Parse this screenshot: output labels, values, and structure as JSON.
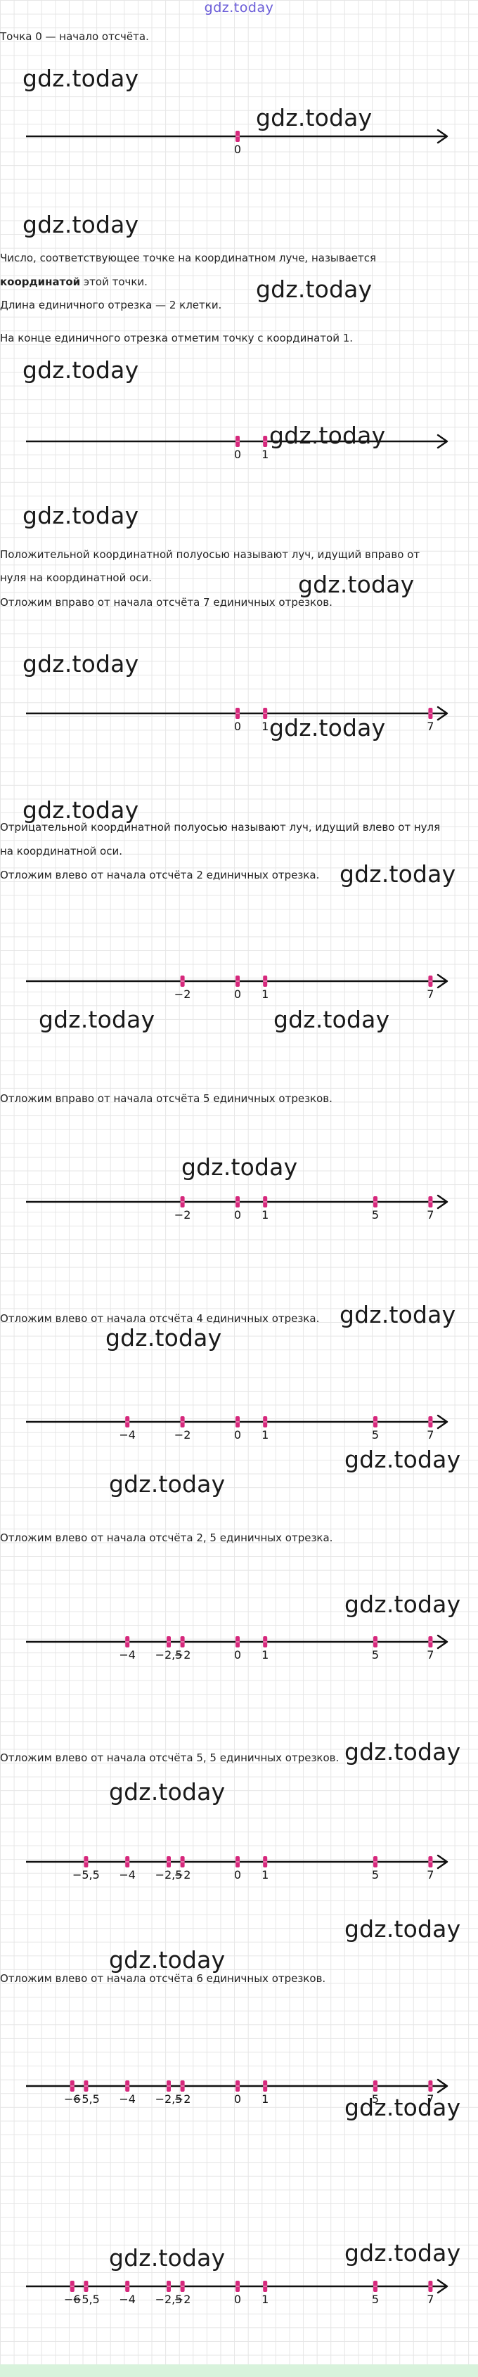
{
  "header": {
    "site_name": "gdz.today"
  },
  "watermark": "gdz.today",
  "texts": {
    "t1": "Точка 0 — начало отсчёта.",
    "t2": "Число, соответствующее точке на координатном луче, называется",
    "t3_bold": "координатой",
    "t3_rest": " этой точки.",
    "t4": "Длина единичного отрезка — 2 клетки.",
    "t5": "На конце единичного отрезка отметим точку с координатой 1.",
    "t6": "Положительной координатной полуосью называют луч, идущий вправо от",
    "t7": "нуля на координатной оси.",
    "t8": "Отложим вправо от начала отсчёта 7 единичных отрезков.",
    "t9": "Отрицательной координатной полуосью называют луч, идущий влево от нуля",
    "t10": "на координатной оси.",
    "t11": "Отложим влево от начала отсчёта 2 единичных отрезка.",
    "t12": "Отложим вправо от начала отсчёта 5 единичных отрезков.",
    "t13": "Отложим влево от начала отсчёта 4 единичных отрезка.",
    "t14": "Отложим влево от начала отсчёта 2, 5 единичных отрезка.",
    "t15": "Отложим влево от начала отсчёта 5, 5 единичных отрезков.",
    "t16": "Отложим влево от начала отсчёта 6 единичных отрезков."
  },
  "number_lines": [
    {
      "marks": [
        "0"
      ]
    },
    {
      "marks": [
        "0",
        "1"
      ]
    },
    {
      "marks": [
        "0",
        "1",
        "7"
      ]
    },
    {
      "marks": [
        "-2",
        "0",
        "1",
        "7"
      ]
    },
    {
      "marks": [
        "-2",
        "0",
        "1",
        "5",
        "7"
      ]
    },
    {
      "marks": [
        "-4",
        "-2",
        "0",
        "1",
        "5",
        "7"
      ]
    },
    {
      "marks": [
        "-4",
        "-2,5",
        "-2",
        "0",
        "1",
        "5",
        "7"
      ]
    },
    {
      "marks": [
        "-5,5",
        "-4",
        "-2,5",
        "-2",
        "0",
        "1",
        "5",
        "7"
      ]
    },
    {
      "marks": [
        "-6",
        "-5,5",
        "-4",
        "-2,5",
        "-2",
        "0",
        "1",
        "5",
        "7"
      ]
    },
    {
      "marks": [
        "-6",
        "-5,5",
        "-4",
        "-2,5",
        "-2",
        "0",
        "1",
        "5",
        "7"
      ]
    }
  ],
  "colors": {
    "mark": "#d6287c",
    "axis": "#111111",
    "title": "#6a5cd8",
    "footer": "#d8f3dc"
  }
}
